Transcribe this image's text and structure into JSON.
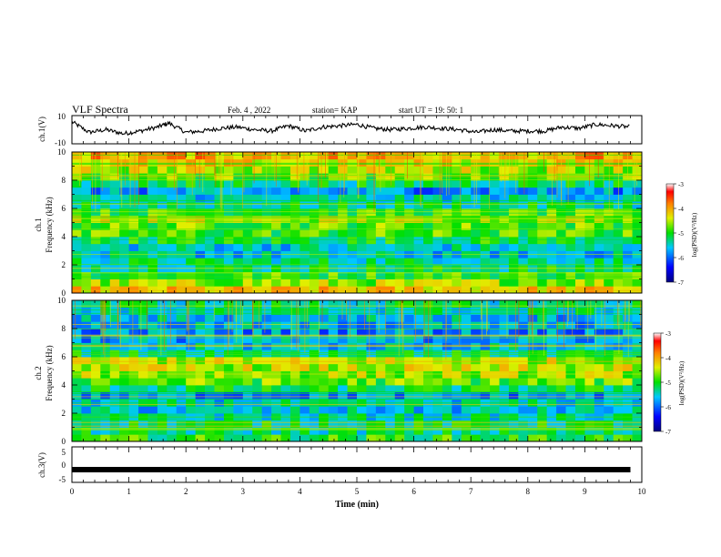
{
  "header": {
    "title": "VLF Spectra",
    "date": "Feb. 4 , 2022",
    "station": "station= KAP",
    "start_ut": "start  UT =   19: 50: 1"
  },
  "panels": {
    "ch1_label": "ch.1(V)",
    "ch3_label": "ch.3(V)",
    "spec1_label_a": "ch.1",
    "spec1_label_b": "Frequency (kHz)",
    "spec2_label_a": "ch.2",
    "spec2_label_b": "Frequency (kHz)",
    "xlabel": "Time  (min)"
  },
  "colorbar": {
    "label": "log(PSD)(V²/Hz)",
    "ticks": [
      "-3",
      "-4",
      "-5",
      "-6",
      "-7"
    ]
  },
  "chart_data": [
    {
      "type": "line",
      "name": "ch1-waveform",
      "ylabel": "ch.1(V)",
      "ylim": [
        -10,
        10
      ],
      "yticks": [
        "10",
        "-10"
      ],
      "xlim": [
        0,
        10
      ],
      "x": [
        0,
        0.3,
        0.6,
        0.9,
        1.2,
        1.5,
        1.7,
        2.0,
        2.3,
        2.6,
        2.9,
        3.2,
        3.5,
        3.8,
        4.1,
        4.4,
        4.7,
        5.0,
        5.3,
        5.6,
        5.9,
        6.2,
        6.5,
        6.8,
        7.1,
        7.4,
        7.7,
        8.0,
        8.3,
        8.6,
        8.9,
        9.2,
        9.5,
        9.8
      ],
      "y": [
        6,
        -2,
        0,
        -3,
        -1,
        2,
        5,
        -2,
        -1,
        1,
        2,
        0,
        -1,
        3,
        -1,
        2,
        3,
        4,
        1,
        0,
        1,
        2,
        1,
        0,
        -2,
        0,
        -1,
        -1,
        -1,
        2,
        1,
        4,
        3,
        2
      ]
    },
    {
      "type": "heatmap",
      "name": "ch1-spectrogram",
      "xlabel": "Time  (min)",
      "ylabel": "ch.1 Frequency (kHz)",
      "xlim": [
        0,
        10
      ],
      "ylim": [
        0,
        10
      ],
      "colorscale_range": [
        -7,
        -3
      ],
      "colorbar_label": "log(PSD)(V²/Hz)",
      "freq_kHz": [
        0.25,
        0.75,
        1.25,
        1.75,
        2.25,
        2.75,
        3.25,
        3.75,
        4.25,
        4.75,
        5.25,
        5.75,
        6.25,
        6.75,
        7.25,
        7.75,
        8.25,
        8.75,
        9.25,
        9.75
      ],
      "log_psd": [
        -4.2,
        -4.6,
        -4.9,
        -5.2,
        -5.3,
        -5.6,
        -5.5,
        -5.1,
        -4.9,
        -4.8,
        -4.5,
        -4.9,
        -5.3,
        -5.5,
        -5.8,
        -5.2,
        -4.8,
        -4.5,
        -4.3,
        -4.0
      ]
    },
    {
      "type": "heatmap",
      "name": "ch2-spectrogram",
      "xlabel": "Time  (min)",
      "ylabel": "ch.2 Frequency (kHz)",
      "xlim": [
        0,
        10
      ],
      "ylim": [
        0,
        10
      ],
      "colorscale_range": [
        -7,
        -3
      ],
      "colorbar_label": "log(PSD)(V²/Hz)",
      "freq_kHz": [
        0.25,
        0.75,
        1.25,
        1.75,
        2.25,
        2.75,
        3.25,
        3.75,
        4.25,
        4.75,
        5.25,
        5.75,
        6.25,
        6.75,
        7.25,
        7.75,
        8.25,
        8.75,
        9.25,
        9.75
      ],
      "log_psd": [
        -5.0,
        -5.3,
        -5.2,
        -5.4,
        -5.6,
        -5.5,
        -5.8,
        -5.2,
        -4.8,
        -4.6,
        -4.5,
        -4.5,
        -5.2,
        -5.6,
        -5.7,
        -5.8,
        -5.7,
        -5.6,
        -5.4,
        -5.3
      ]
    },
    {
      "type": "line",
      "name": "ch3-waveform",
      "ylabel": "ch.3(V)",
      "ylim": [
        -5,
        5
      ],
      "yticks": [
        "5",
        "0",
        "-5"
      ],
      "xlim": [
        0,
        10
      ],
      "xticks": [
        "0",
        "1",
        "2",
        "3",
        "4",
        "5",
        "6",
        "7",
        "8",
        "9",
        "10"
      ],
      "x": [
        0,
        9.8
      ],
      "y": [
        -1.5,
        -1.5
      ]
    }
  ]
}
